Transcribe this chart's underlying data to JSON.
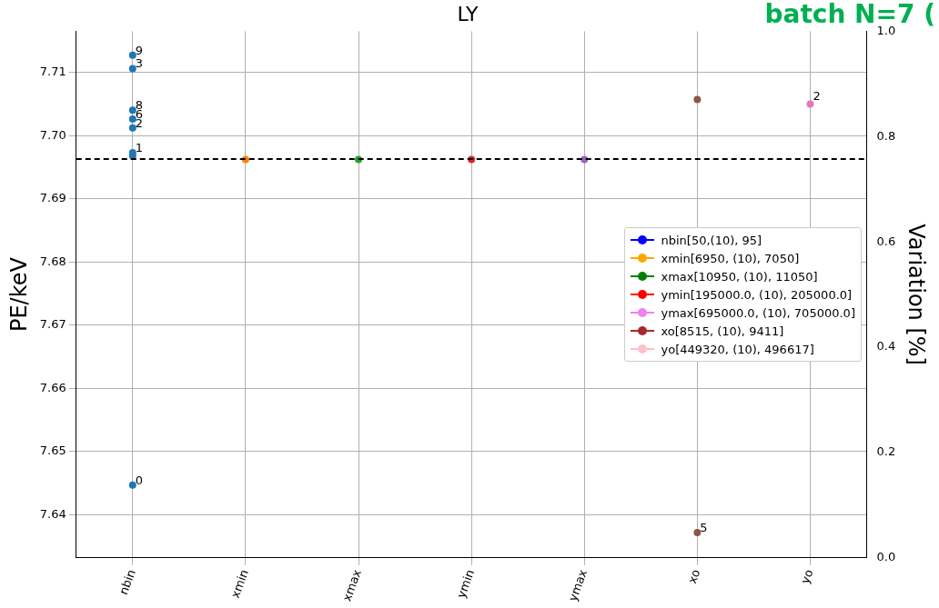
{
  "chart_data": {
    "type": "scatter",
    "title": "LY",
    "ylabel": "PE/keV",
    "y2label": "Variation [%]",
    "annotations": [
      "batch N=7 (",
      {
        "text": "0",
        "x": "nbin",
        "y": 7.6447
      },
      {
        "text": "1",
        "x": "nbin",
        "y": 7.6973
      },
      {
        "text": "2",
        "x": "nbin",
        "y": 7.7012
      },
      {
        "text": "3",
        "x": "nbin",
        "y": 7.7106
      },
      {
        "text": "6",
        "x": "nbin",
        "y": 7.7026
      },
      {
        "text": "8",
        "x": "nbin",
        "y": 7.704
      },
      {
        "text": "9",
        "x": "nbin",
        "y": 7.7127
      },
      {
        "text": "5",
        "x": "xo",
        "y": 7.6372
      },
      {
        "text": "2",
        "x": "yo",
        "y": 7.7055
      }
    ],
    "categories": [
      "nbin",
      "xmin",
      "xmax",
      "ymin",
      "ymax",
      "xo",
      "yo"
    ],
    "ylim": [
      7.6332,
      7.7165
    ],
    "yticks": [
      7.64,
      7.65,
      7.66,
      7.67,
      7.68,
      7.69,
      {
        "value": 7.7,
        "label": "7.70"
      },
      7.71
    ],
    "y2lim": [
      0,
      1
    ],
    "y2ticks": [
      {
        "value": 0,
        "label": "0.0"
      },
      0.2,
      0.4,
      0.6,
      0.8,
      {
        "value": 1,
        "label": "1.0"
      }
    ],
    "grid": true,
    "legend": "right",
    "marker": "circle",
    "ref_lines": [
      {
        "axis": "y",
        "value": 7.6963,
        "color": "#000000",
        "line_style": "dashed"
      }
    ],
    "series": [
      {
        "color": "#1f77b4",
        "x": [
          "nbin",
          "nbin",
          "nbin",
          "nbin",
          "nbin",
          "nbin",
          "nbin",
          "nbin",
          "nbin",
          "nbin"
        ],
        "values": [
          7.6447,
          7.6973,
          7.7012,
          7.7106,
          null,
          null,
          7.7026,
          7.6968,
          7.704,
          7.7127
        ]
      },
      {
        "color": "#ff7f0e",
        "x": [
          "xmin"
        ],
        "values": [
          7.6962
        ]
      },
      {
        "color": "#2ca02c",
        "x": [
          "xmax"
        ],
        "values": [
          7.6962
        ]
      },
      {
        "color": "#d62728",
        "x": [
          "ymin"
        ],
        "values": [
          7.6962
        ]
      },
      {
        "color": "#9467bd",
        "x": [
          "ymax"
        ],
        "values": [
          7.6962
        ]
      },
      {
        "color": "#8c564b",
        "x": [
          "xo",
          "xo"
        ],
        "values": [
          7.7057,
          7.6372
        ]
      },
      {
        "color": "#e377c2",
        "x": [
          "yo"
        ],
        "values": [
          7.705
        ]
      },
      {
        "type": "line",
        "name": "nbin[50,(10), 95]",
        "color": "#0000ff",
        "values": [
          null,
          null,
          null,
          null,
          null,
          null,
          null
        ]
      },
      {
        "type": "line",
        "name": "xmin[6950, (10), 7050]",
        "color": "#ffa500",
        "values": [
          null,
          null,
          null,
          null,
          null,
          null,
          null
        ]
      },
      {
        "type": "line",
        "name": "xmax[10950, (10), 11050]",
        "color": "#008000",
        "values": [
          null,
          null,
          null,
          null,
          null,
          null,
          null
        ]
      },
      {
        "type": "line",
        "name": "ymin[195000.0, (10), 205000.0]",
        "color": "#ff0000",
        "values": [
          null,
          null,
          null,
          null,
          null,
          null,
          null
        ]
      },
      {
        "type": "line",
        "name": "ymax[695000.0, (10), 705000.0]",
        "color": "#ee82ee",
        "values": [
          null,
          null,
          null,
          null,
          null,
          null,
          null
        ]
      },
      {
        "type": "line",
        "name": "xo[8515, (10), 9411]",
        "color": "#a52a2a",
        "values": [
          null,
          null,
          null,
          null,
          null,
          null,
          null
        ]
      },
      {
        "type": "line",
        "name": "yo[449320, (10), 496617]",
        "color": "#ffc0cb",
        "values": [
          null,
          null,
          null,
          null,
          null,
          null,
          null
        ]
      }
    ]
  }
}
